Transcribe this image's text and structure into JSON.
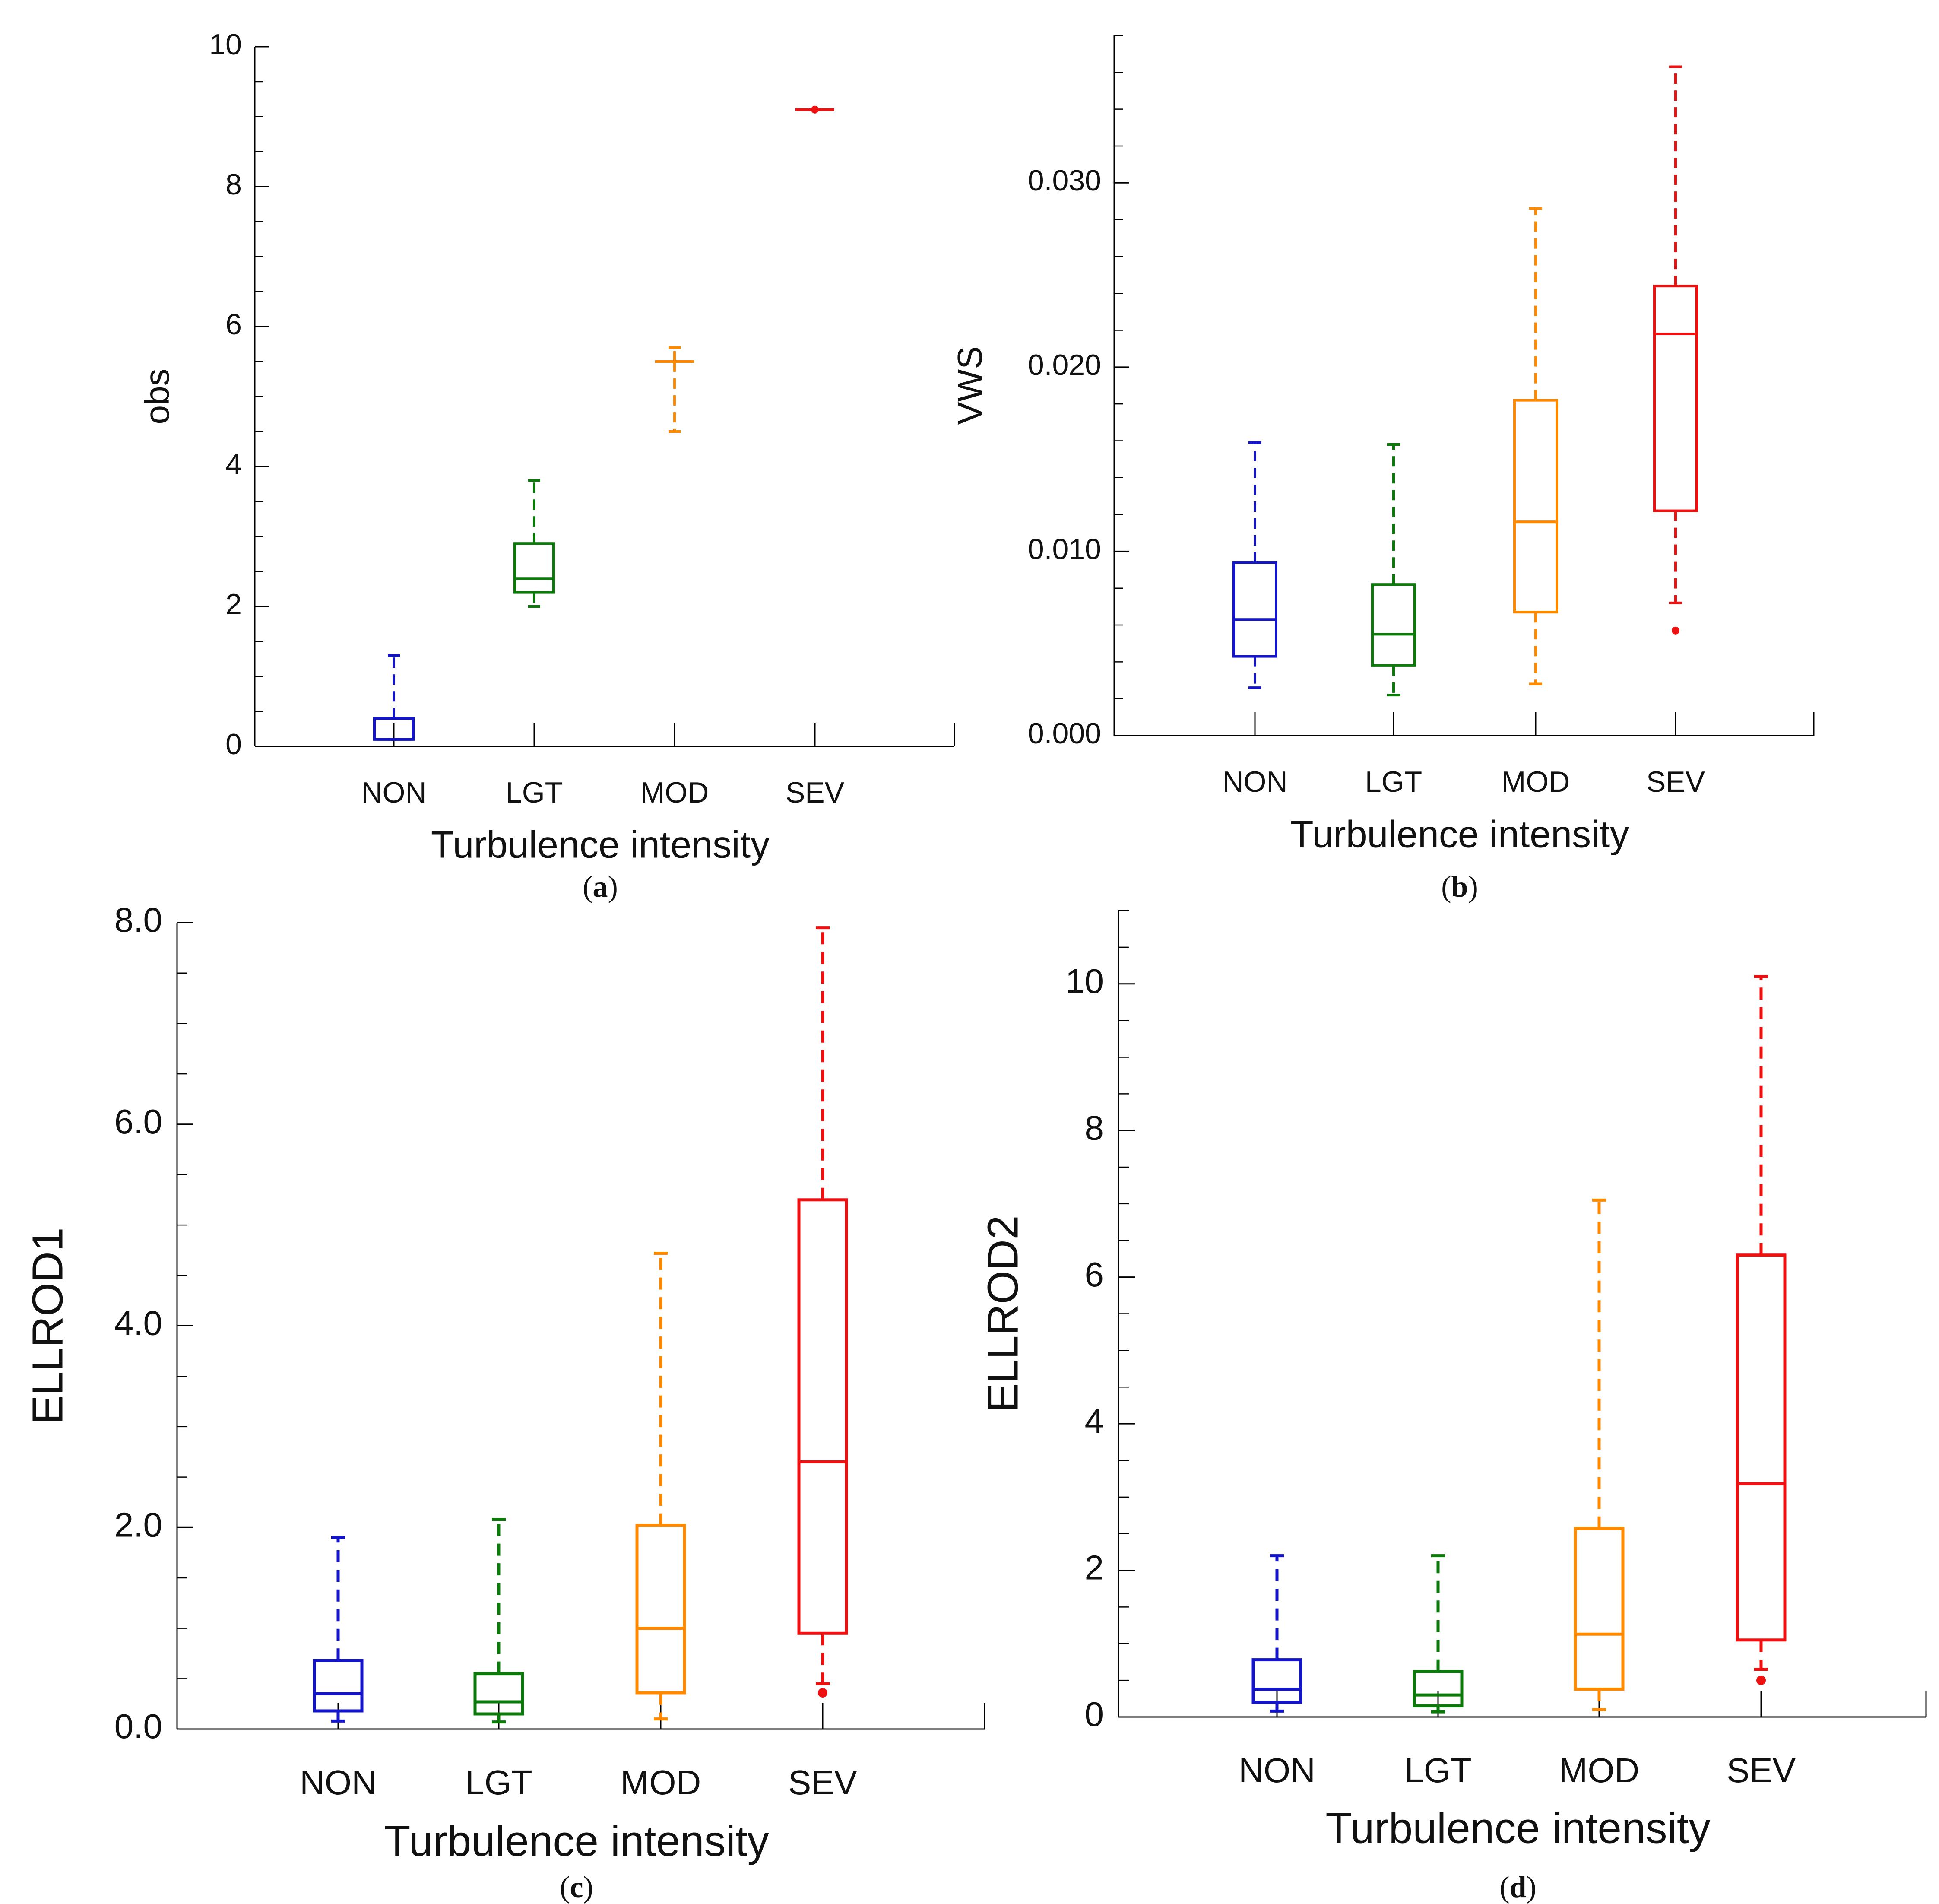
{
  "chart_data": [
    {
      "id": "a",
      "type": "box",
      "panel_label": "(a)",
      "ylabel": "obs",
      "xlabel": "Turbulence intensity",
      "categories": [
        "NON",
        "LGT",
        "MOD",
        "SEV"
      ],
      "colors": [
        "#1515c8",
        "#0b7a0b",
        "#ff8a00",
        "#ee1111"
      ],
      "ylim": [
        0,
        10
      ],
      "yticks": [
        0,
        2,
        4,
        6,
        8,
        10
      ],
      "yticklabels": [
        "0",
        "2",
        "4",
        "6",
        "8",
        "10"
      ],
      "minor_step": 0.5,
      "boxes": [
        {
          "name": "NON",
          "whislo": 0.1,
          "q1": 0.1,
          "med": 0.1,
          "q3": 0.4,
          "whishi": 1.3,
          "fliers": []
        },
        {
          "name": "LGT",
          "whislo": 2.0,
          "q1": 2.2,
          "med": 2.4,
          "q3": 2.9,
          "whishi": 3.8,
          "fliers": []
        },
        {
          "name": "MOD",
          "whislo": 4.5,
          "q1": 5.5,
          "med": 5.5,
          "q3": 5.5,
          "whishi": 5.7,
          "fliers": []
        },
        {
          "name": "SEV",
          "whislo": 9.1,
          "q1": 9.1,
          "med": 9.1,
          "q3": 9.1,
          "whishi": 9.1,
          "fliers": [
            9.1
          ]
        }
      ]
    },
    {
      "id": "b",
      "type": "box",
      "panel_label": "(b)",
      "ylabel": "VWS",
      "xlabel": "Turbulence intensity",
      "categories": [
        "NON",
        "LGT",
        "MOD",
        "SEV"
      ],
      "colors": [
        "#1515c8",
        "#0b7a0b",
        "#ff8a00",
        "#ee1111"
      ],
      "ylim": [
        0,
        0.038
      ],
      "yticks": [
        0,
        0.01,
        0.02,
        0.03
      ],
      "yticklabels": [
        "0.000",
        "0.010",
        "0.020",
        "0.030"
      ],
      "minor_step": 0.002,
      "boxes": [
        {
          "name": "NON",
          "whislo": 0.0026,
          "q1": 0.0043,
          "med": 0.0063,
          "q3": 0.0094,
          "whishi": 0.0159,
          "fliers": []
        },
        {
          "name": "LGT",
          "whislo": 0.0022,
          "q1": 0.0038,
          "med": 0.0055,
          "q3": 0.0082,
          "whishi": 0.0158,
          "fliers": []
        },
        {
          "name": "MOD",
          "whislo": 0.0028,
          "q1": 0.0067,
          "med": 0.0116,
          "q3": 0.0182,
          "whishi": 0.0286,
          "fliers": []
        },
        {
          "name": "SEV",
          "whislo": 0.0072,
          "q1": 0.0122,
          "med": 0.0218,
          "q3": 0.0244,
          "whishi": 0.0363,
          "fliers": [
            0.0057
          ]
        }
      ]
    },
    {
      "id": "c",
      "type": "box",
      "panel_label": "(c)",
      "ylabel": "ELLROD1",
      "xlabel": "Turbulence intensity",
      "categories": [
        "NON",
        "LGT",
        "MOD",
        "SEV"
      ],
      "colors": [
        "#1515c8",
        "#0b7a0b",
        "#ff8a00",
        "#ee1111"
      ],
      "ylim": [
        0,
        8.0
      ],
      "yticks": [
        0,
        2,
        4,
        6,
        8
      ],
      "yticklabels": [
        "0.0",
        "2.0",
        "4.0",
        "6.0",
        "8.0"
      ],
      "minor_step": 0.5,
      "boxes": [
        {
          "name": "NON",
          "whislo": 0.08,
          "q1": 0.18,
          "med": 0.35,
          "q3": 0.68,
          "whishi": 1.9,
          "fliers": []
        },
        {
          "name": "LGT",
          "whislo": 0.07,
          "q1": 0.15,
          "med": 0.27,
          "q3": 0.55,
          "whishi": 2.08,
          "fliers": []
        },
        {
          "name": "MOD",
          "whislo": 0.1,
          "q1": 0.36,
          "med": 1.0,
          "q3": 2.02,
          "whishi": 4.72,
          "fliers": []
        },
        {
          "name": "SEV",
          "whislo": 0.45,
          "q1": 0.95,
          "med": 2.65,
          "q3": 5.25,
          "whishi": 7.95,
          "fliers": [
            0.36
          ]
        }
      ]
    },
    {
      "id": "d",
      "type": "box",
      "panel_label": "(d)",
      "ylabel": "ELLROD2",
      "xlabel": "Turbulence intensity",
      "categories": [
        "NON",
        "LGT",
        "MOD",
        "SEV"
      ],
      "colors": [
        "#1515c8",
        "#0b7a0b",
        "#ff8a00",
        "#ee1111"
      ],
      "ylim": [
        0,
        11
      ],
      "yticks": [
        0,
        2,
        4,
        6,
        8,
        10
      ],
      "yticklabels": [
        "0",
        "2",
        "4",
        "6",
        "8",
        "10"
      ],
      "minor_step": 0.5,
      "boxes": [
        {
          "name": "NON",
          "whislo": 0.08,
          "q1": 0.2,
          "med": 0.38,
          "q3": 0.78,
          "whishi": 2.2,
          "fliers": []
        },
        {
          "name": "LGT",
          "whislo": 0.07,
          "q1": 0.15,
          "med": 0.3,
          "q3": 0.62,
          "whishi": 2.2,
          "fliers": []
        },
        {
          "name": "MOD",
          "whislo": 0.1,
          "q1": 0.38,
          "med": 1.13,
          "q3": 2.57,
          "whishi": 7.05,
          "fliers": []
        },
        {
          "name": "SEV",
          "whislo": 0.65,
          "q1": 1.05,
          "med": 3.18,
          "q3": 6.3,
          "whishi": 10.1,
          "fliers": [
            0.5
          ]
        }
      ]
    }
  ]
}
